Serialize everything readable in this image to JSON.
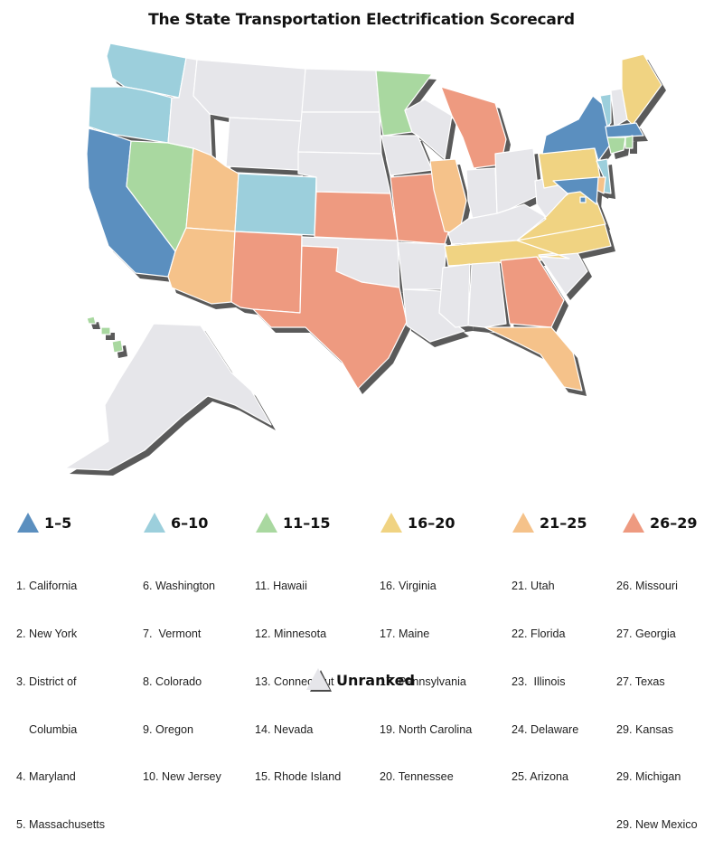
{
  "title": "The State Transportation Electrification Scorecard",
  "colors": {
    "tier1": "#5b8fbf",
    "tier2": "#9ccfdc",
    "tier3": "#a9d8a0",
    "tier4": "#f0d382",
    "tier5": "#f5c28a",
    "tier6": "#ee9a80",
    "unranked": "#e6e6ea"
  },
  "legend": {
    "tiers": [
      {
        "label": "1–5",
        "color": "#5b8fbf"
      },
      {
        "label": "6–10",
        "color": "#9ccfdc"
      },
      {
        "label": "11–15",
        "color": "#a9d8a0"
      },
      {
        "label": "16–20",
        "color": "#f0d382"
      },
      {
        "label": "21–25",
        "color": "#f5c28a"
      },
      {
        "label": "26–29",
        "color": "#ee9a80"
      }
    ],
    "unranked": "Unranked"
  },
  "rankings": {
    "col1": [
      "1. California",
      "2. New York",
      "3. District of",
      "    Columbia",
      "4. Maryland",
      "5. Massachusetts"
    ],
    "col2": [
      "6. Washington",
      "7.  Vermont",
      "8. Colorado",
      "9. Oregon",
      "10. New Jersey"
    ],
    "col3": [
      "11. Hawaii",
      "12. Minnesota",
      "13. Connecticut",
      "14. Nevada",
      "15. Rhode Island"
    ],
    "col4": [
      "16. Virginia",
      "17. Maine",
      "17. Pennsylvania",
      "19. North Carolina",
      "20. Tennessee"
    ],
    "col5": [
      "21. Utah",
      "22. Florida",
      "23.  Illinois",
      "24. Delaware",
      "25. Arizona"
    ],
    "col6": [
      "26. Missouri",
      "27. Georgia",
      "27. Texas",
      "29. Kansas",
      "29. Michigan",
      "29. New Mexico"
    ]
  },
  "state_tiers": {
    "CA": 1,
    "NY": 1,
    "DC": 1,
    "MD": 1,
    "MA": 1,
    "WA": 2,
    "VT": 2,
    "CO": 2,
    "OR": 2,
    "NJ": 2,
    "HI": 3,
    "MN": 3,
    "CT": 3,
    "NV": 3,
    "RI": 3,
    "VA": 4,
    "ME": 4,
    "PA": 4,
    "NC": 4,
    "TN": 4,
    "UT": 5,
    "FL": 5,
    "IL": 5,
    "DE": 5,
    "AZ": 5,
    "MO": 6,
    "GA": 6,
    "TX": 6,
    "KS": 6,
    "MI": 6,
    "NM": 6
  }
}
